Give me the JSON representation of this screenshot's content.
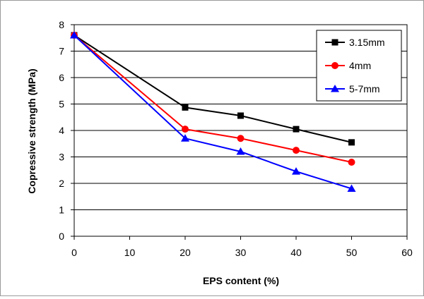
{
  "chart_data": {
    "type": "line",
    "xlabel": "EPS content (%)",
    "ylabel": "Copressive strength (MPa)",
    "xlim": [
      0,
      60
    ],
    "ylim": [
      0,
      8
    ],
    "x_ticks": [
      "0",
      "10",
      "20",
      "30",
      "40",
      "50",
      "60"
    ],
    "y_ticks": [
      "0",
      "1",
      "2",
      "3",
      "4",
      "5",
      "6",
      "7",
      "8"
    ],
    "grid": "horizontal",
    "legend_position": "top-right",
    "x": [
      0,
      20,
      30,
      40,
      50
    ],
    "series": [
      {
        "name": "3.15mm",
        "color": "#000000",
        "marker": "square",
        "values": [
          7.6,
          4.87,
          4.56,
          4.05,
          3.55
        ]
      },
      {
        "name": "4mm",
        "color": "#ff0000",
        "marker": "circle",
        "values": [
          7.6,
          4.05,
          3.7,
          3.25,
          2.8
        ]
      },
      {
        "name": "5-7mm",
        "color": "#0000ff",
        "marker": "triangle",
        "values": [
          7.6,
          3.7,
          3.2,
          2.45,
          1.8
        ]
      }
    ]
  }
}
